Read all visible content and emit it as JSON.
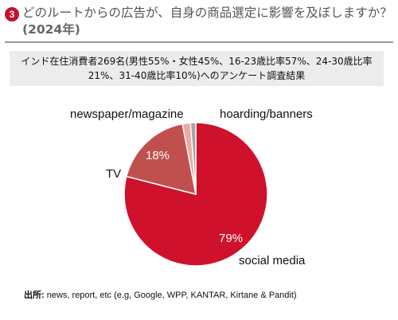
{
  "header": {
    "number": "3",
    "title": "どのルートからの広告が、自身の商品選定に影響を及ぼしますか？",
    "year": "(2024年)"
  },
  "subtitle": "インド在住消費者269名(男性55%・女性45%、16-23歳比率57%、24-30歳比率21%、31-40歳比率10%)へのアンケート調査結果",
  "source": {
    "label": "出所:",
    "text": "news, report, etc (e.g, Google, WPP, KANTAR, Kirtane & Pandit)"
  },
  "colors": {
    "accent": "#c8102e"
  },
  "chart_data": {
    "type": "pie",
    "start_angle_deg": 0,
    "direction": "clockwise",
    "slices": [
      {
        "label": "social media",
        "value": 79,
        "value_label": "79%",
        "color": "#d0112b"
      },
      {
        "label": "TV",
        "value": 18,
        "value_label": "18%",
        "color": "#c0504d"
      },
      {
        "label": "hoarding/banners",
        "value": 1.8,
        "value_label": "",
        "color": "#f4a7a3"
      },
      {
        "label": "newspaper/magazine",
        "value": 1.2,
        "value_label": "",
        "color": "#a5a5a5"
      }
    ]
  }
}
